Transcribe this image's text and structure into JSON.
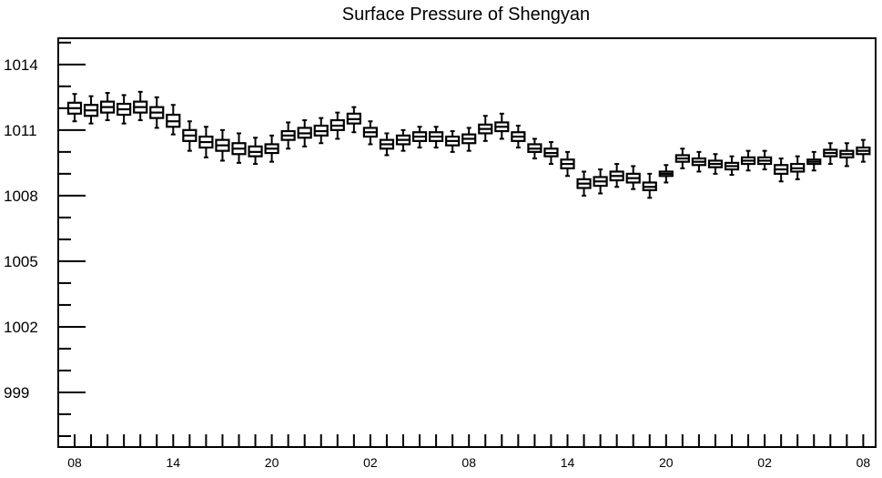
{
  "chart_data": {
    "type": "box",
    "title": "Surface Pressure of Shengyan",
    "xlabel": "",
    "ylabel": "",
    "ylim": [
      996.5,
      1015.2
    ],
    "y_major_ticks": [
      999,
      1002,
      1005,
      1008,
      1011,
      1014
    ],
    "y_tick_labels": [
      "999",
      "1002",
      "1005",
      "1008",
      "1011",
      "1014"
    ],
    "x_tick_labels": [
      "08",
      "14",
      "20",
      "02",
      "08",
      "14",
      "20",
      "02",
      "08"
    ],
    "x_tick_label_steps": [
      0,
      6,
      12,
      18,
      24,
      30,
      36,
      42,
      48
    ],
    "grid": false,
    "box_color": "#000000",
    "box_fill": "#ffffff",
    "series": [
      {
        "values": [
          {
            "step": 0,
            "median": 1012.0,
            "q1": 1011.75,
            "q3": 1012.25,
            "whisker_low": 1011.4,
            "whisker_high": 1012.65
          },
          {
            "step": 1,
            "median": 1011.9,
            "q1": 1011.65,
            "q3": 1012.15,
            "whisker_low": 1011.3,
            "whisker_high": 1012.55
          },
          {
            "step": 2,
            "median": 1012.05,
            "q1": 1011.8,
            "q3": 1012.3,
            "whisker_low": 1011.45,
            "whisker_high": 1012.7
          },
          {
            "step": 3,
            "median": 1011.95,
            "q1": 1011.7,
            "q3": 1012.2,
            "whisker_low": 1011.3,
            "whisker_high": 1012.6
          },
          {
            "step": 4,
            "median": 1012.05,
            "q1": 1011.8,
            "q3": 1012.3,
            "whisker_low": 1011.45,
            "whisker_high": 1012.75
          },
          {
            "step": 5,
            "median": 1011.8,
            "q1": 1011.55,
            "q3": 1012.05,
            "whisker_low": 1011.1,
            "whisker_high": 1012.5
          },
          {
            "step": 6,
            "median": 1011.4,
            "q1": 1011.15,
            "q3": 1011.7,
            "whisker_low": 1010.8,
            "whisker_high": 1012.15
          },
          {
            "step": 7,
            "median": 1010.75,
            "q1": 1010.5,
            "q3": 1011.0,
            "whisker_low": 1010.05,
            "whisker_high": 1011.4
          },
          {
            "step": 8,
            "median": 1010.45,
            "q1": 1010.2,
            "q3": 1010.7,
            "whisker_low": 1009.75,
            "whisker_high": 1011.15
          },
          {
            "step": 9,
            "median": 1010.3,
            "q1": 1010.05,
            "q3": 1010.55,
            "whisker_low": 1009.6,
            "whisker_high": 1011.0
          },
          {
            "step": 10,
            "median": 1010.15,
            "q1": 1009.9,
            "q3": 1010.4,
            "whisker_low": 1009.5,
            "whisker_high": 1010.85
          },
          {
            "step": 11,
            "median": 1010.0,
            "q1": 1009.8,
            "q3": 1010.25,
            "whisker_low": 1009.45,
            "whisker_high": 1010.65
          },
          {
            "step": 12,
            "median": 1010.15,
            "q1": 1009.95,
            "q3": 1010.35,
            "whisker_low": 1009.55,
            "whisker_high": 1010.75
          },
          {
            "step": 13,
            "median": 1010.75,
            "q1": 1010.55,
            "q3": 1010.95,
            "whisker_low": 1010.15,
            "whisker_high": 1011.35
          },
          {
            "step": 14,
            "median": 1010.85,
            "q1": 1010.65,
            "q3": 1011.1,
            "whisker_low": 1010.25,
            "whisker_high": 1011.45
          },
          {
            "step": 15,
            "median": 1010.95,
            "q1": 1010.75,
            "q3": 1011.2,
            "whisker_low": 1010.4,
            "whisker_high": 1011.55
          },
          {
            "step": 16,
            "median": 1011.2,
            "q1": 1011.0,
            "q3": 1011.45,
            "whisker_low": 1010.6,
            "whisker_high": 1011.8
          },
          {
            "step": 17,
            "median": 1011.5,
            "q1": 1011.3,
            "q3": 1011.75,
            "whisker_low": 1010.9,
            "whisker_high": 1012.05
          },
          {
            "step": 18,
            "median": 1010.9,
            "q1": 1010.7,
            "q3": 1011.1,
            "whisker_low": 1010.35,
            "whisker_high": 1011.4
          },
          {
            "step": 19,
            "median": 1010.35,
            "q1": 1010.15,
            "q3": 1010.55,
            "whisker_low": 1009.85,
            "whisker_high": 1010.85
          },
          {
            "step": 20,
            "median": 1010.55,
            "q1": 1010.35,
            "q3": 1010.75,
            "whisker_low": 1010.05,
            "whisker_high": 1011.0
          },
          {
            "step": 21,
            "median": 1010.7,
            "q1": 1010.5,
            "q3": 1010.9,
            "whisker_low": 1010.2,
            "whisker_high": 1011.15
          },
          {
            "step": 22,
            "median": 1010.7,
            "q1": 1010.5,
            "q3": 1010.9,
            "whisker_low": 1010.2,
            "whisker_high": 1011.15
          },
          {
            "step": 23,
            "median": 1010.5,
            "q1": 1010.3,
            "q3": 1010.7,
            "whisker_low": 1010.0,
            "whisker_high": 1010.95
          },
          {
            "step": 24,
            "median": 1010.6,
            "q1": 1010.4,
            "q3": 1010.8,
            "whisker_low": 1010.05,
            "whisker_high": 1011.1
          },
          {
            "step": 25,
            "median": 1011.05,
            "q1": 1010.85,
            "q3": 1011.25,
            "whisker_low": 1010.5,
            "whisker_high": 1011.65
          },
          {
            "step": 26,
            "median": 1011.15,
            "q1": 1010.95,
            "q3": 1011.35,
            "whisker_low": 1010.6,
            "whisker_high": 1011.75
          },
          {
            "step": 27,
            "median": 1010.7,
            "q1": 1010.5,
            "q3": 1010.9,
            "whisker_low": 1010.2,
            "whisker_high": 1011.2
          },
          {
            "step": 28,
            "median": 1010.15,
            "q1": 1010.0,
            "q3": 1010.35,
            "whisker_low": 1009.7,
            "whisker_high": 1010.6
          },
          {
            "step": 29,
            "median": 1009.95,
            "q1": 1009.8,
            "q3": 1010.15,
            "whisker_low": 1009.45,
            "whisker_high": 1010.45
          },
          {
            "step": 30,
            "median": 1009.45,
            "q1": 1009.25,
            "q3": 1009.65,
            "whisker_low": 1008.9,
            "whisker_high": 1010.0
          },
          {
            "step": 31,
            "median": 1008.55,
            "q1": 1008.35,
            "q3": 1008.75,
            "whisker_low": 1008.0,
            "whisker_high": 1009.1
          },
          {
            "step": 32,
            "median": 1008.65,
            "q1": 1008.45,
            "q3": 1008.85,
            "whisker_low": 1008.1,
            "whisker_high": 1009.2
          },
          {
            "step": 33,
            "median": 1008.9,
            "q1": 1008.7,
            "q3": 1009.1,
            "whisker_low": 1008.4,
            "whisker_high": 1009.45
          },
          {
            "step": 34,
            "median": 1008.8,
            "q1": 1008.6,
            "q3": 1009.0,
            "whisker_low": 1008.3,
            "whisker_high": 1009.35
          },
          {
            "step": 35,
            "median": 1008.4,
            "q1": 1008.25,
            "q3": 1008.6,
            "whisker_low": 1007.9,
            "whisker_high": 1009.0
          },
          {
            "step": 36,
            "median": 1009.0,
            "q1": 1008.9,
            "q3": 1009.1,
            "whisker_low": 1008.6,
            "whisker_high": 1009.4
          },
          {
            "step": 37,
            "median": 1009.7,
            "q1": 1009.55,
            "q3": 1009.85,
            "whisker_low": 1009.25,
            "whisker_high": 1010.15
          },
          {
            "step": 38,
            "median": 1009.55,
            "q1": 1009.4,
            "q3": 1009.7,
            "whisker_low": 1009.1,
            "whisker_high": 1010.0
          },
          {
            "step": 39,
            "median": 1009.45,
            "q1": 1009.3,
            "q3": 1009.6,
            "whisker_low": 1009.0,
            "whisker_high": 1009.9
          },
          {
            "step": 40,
            "median": 1009.35,
            "q1": 1009.2,
            "q3": 1009.5,
            "whisker_low": 1008.95,
            "whisker_high": 1009.8
          },
          {
            "step": 41,
            "median": 1009.6,
            "q1": 1009.45,
            "q3": 1009.75,
            "whisker_low": 1009.15,
            "whisker_high": 1010.05
          },
          {
            "step": 42,
            "median": 1009.6,
            "q1": 1009.45,
            "q3": 1009.75,
            "whisker_low": 1009.2,
            "whisker_high": 1010.05
          },
          {
            "step": 43,
            "median": 1009.2,
            "q1": 1009.0,
            "q3": 1009.4,
            "whisker_low": 1008.65,
            "whisker_high": 1009.7
          },
          {
            "step": 44,
            "median": 1009.25,
            "q1": 1009.1,
            "q3": 1009.45,
            "whisker_low": 1008.75,
            "whisker_high": 1009.8
          },
          {
            "step": 45,
            "median": 1009.55,
            "q1": 1009.45,
            "q3": 1009.65,
            "whisker_low": 1009.15,
            "whisker_high": 1010.0
          },
          {
            "step": 46,
            "median": 1009.95,
            "q1": 1009.8,
            "q3": 1010.1,
            "whisker_low": 1009.45,
            "whisker_high": 1010.4
          },
          {
            "step": 47,
            "median": 1009.9,
            "q1": 1009.75,
            "q3": 1010.05,
            "whisker_low": 1009.35,
            "whisker_high": 1010.4
          },
          {
            "step": 48,
            "median": 1010.05,
            "q1": 1009.9,
            "q3": 1010.2,
            "whisker_low": 1009.55,
            "whisker_high": 1010.55
          }
        ]
      }
    ]
  }
}
